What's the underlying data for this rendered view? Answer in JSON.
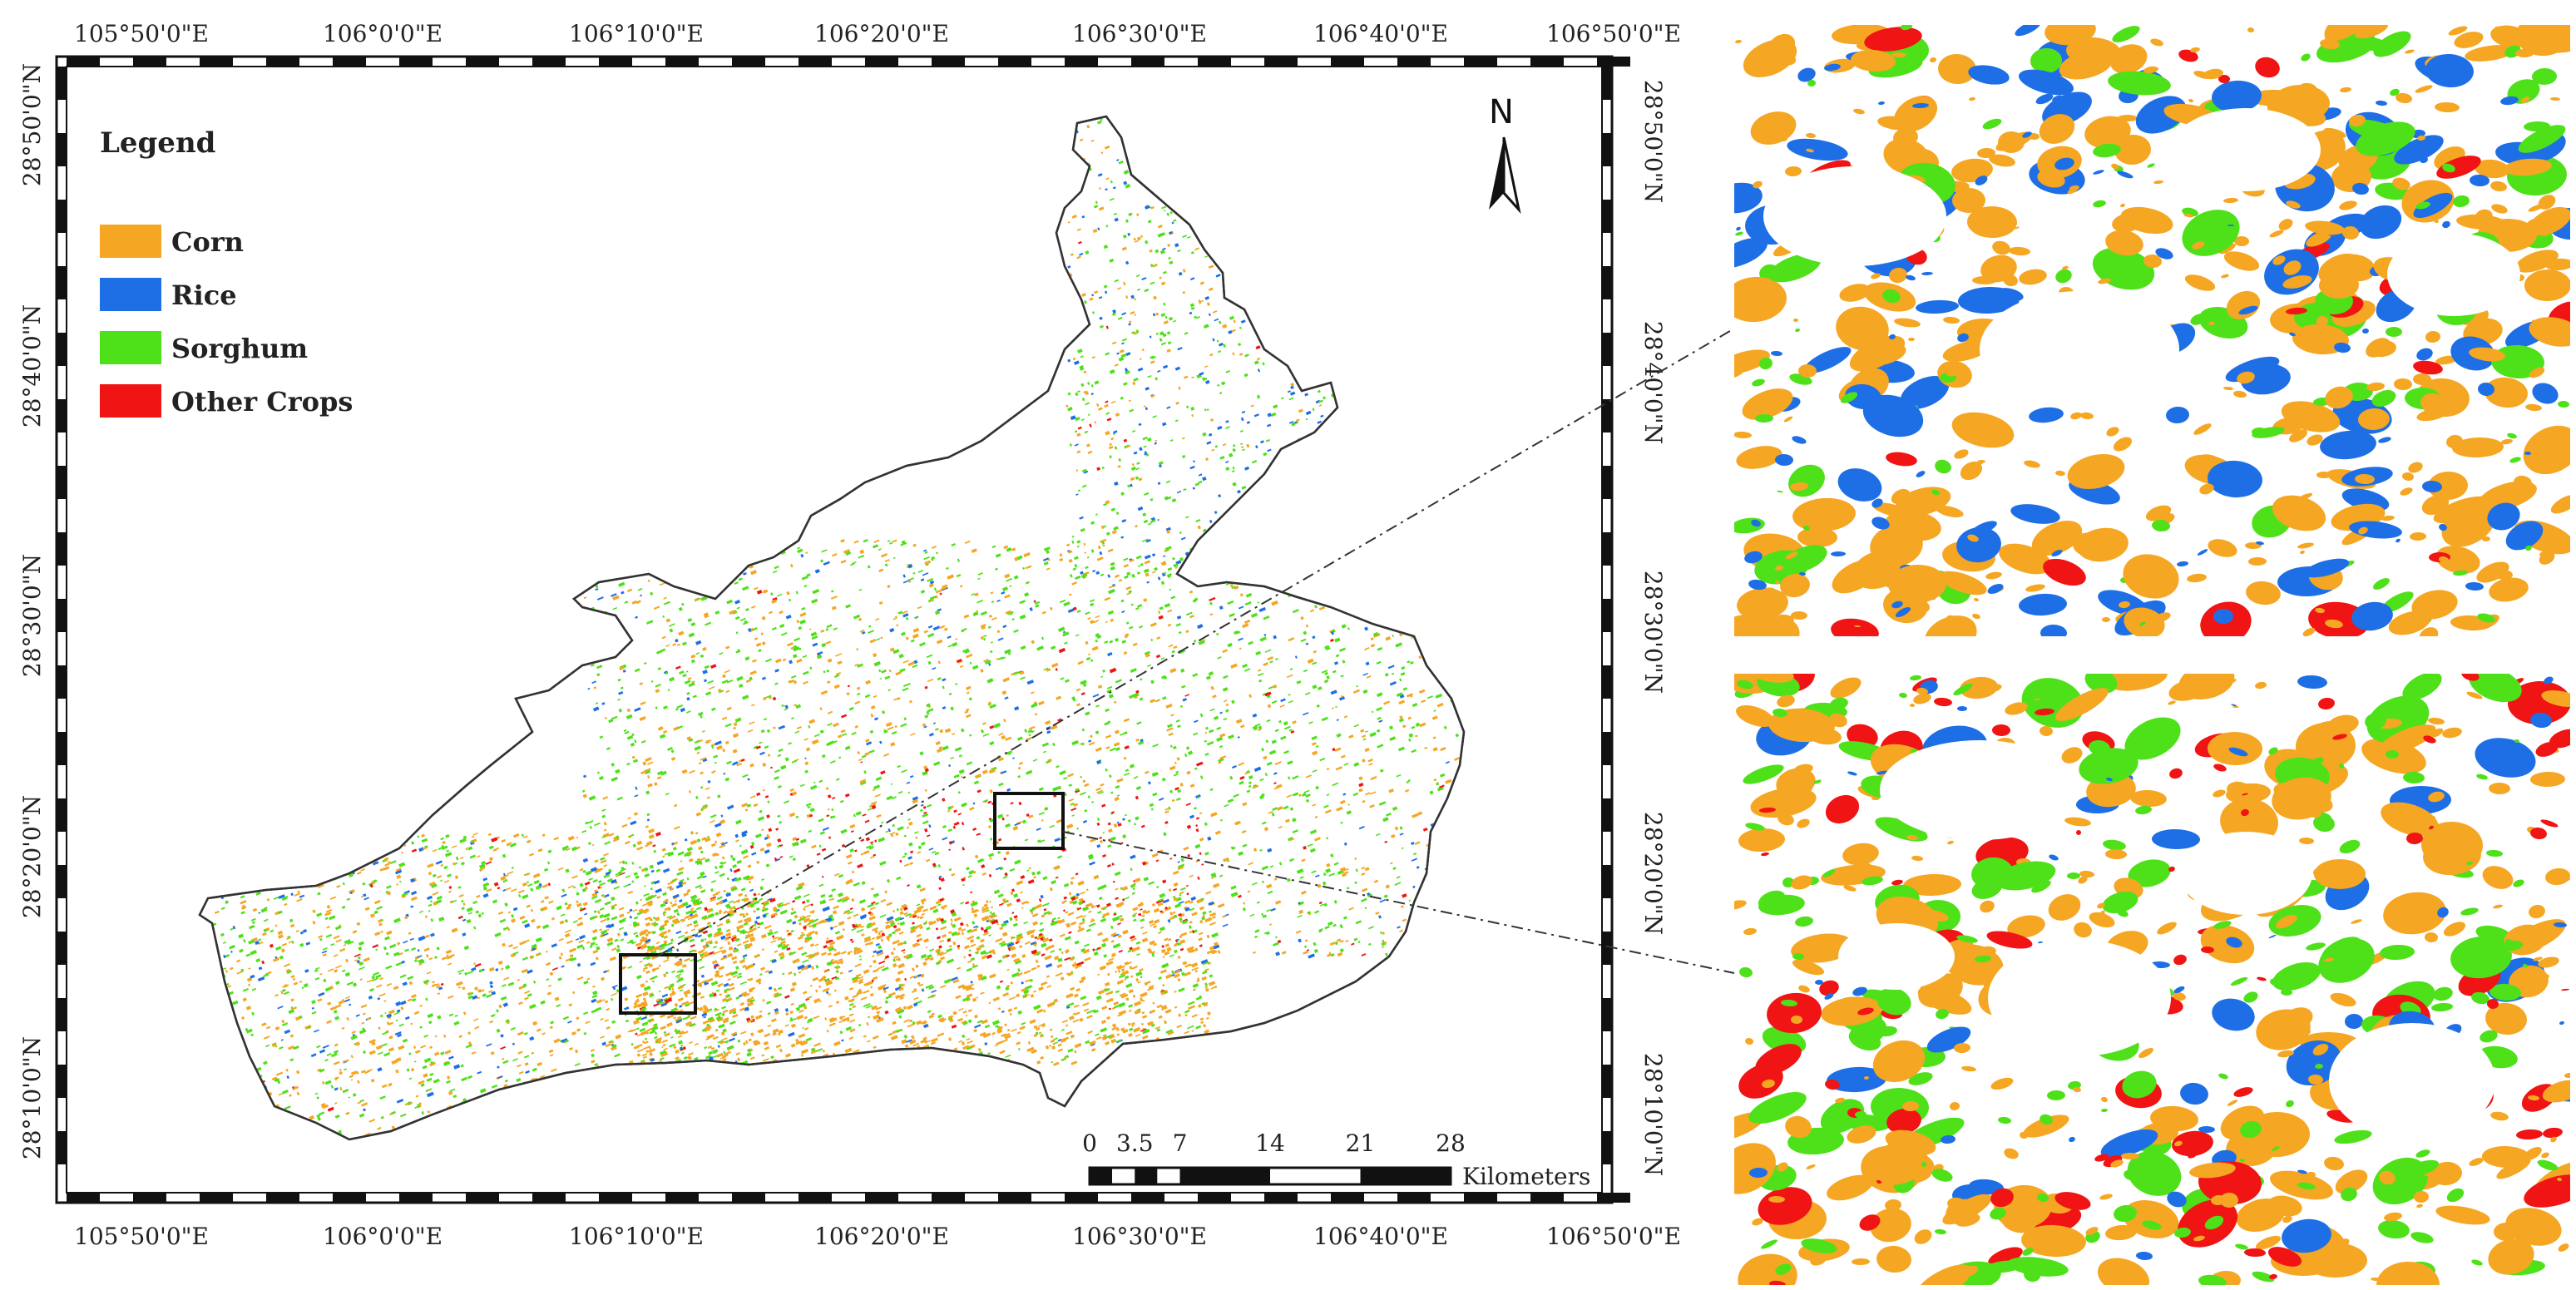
{
  "map": {
    "legend": {
      "title": "Legend",
      "items": [
        {
          "label": "Corn",
          "color": "#f5a623"
        },
        {
          "label": "Rice",
          "color": "#1e6fe6"
        },
        {
          "label": "Sorghum",
          "color": "#4ee11a"
        },
        {
          "label": "Other Crops",
          "color": "#f01414"
        }
      ]
    },
    "longitude_ticks": [
      "105°50'0\"E",
      "106°0'0\"E",
      "106°10'0\"E",
      "106°20'0\"E",
      "106°30'0\"E",
      "106°40'0\"E",
      "106°50'0\"E"
    ],
    "latitude_ticks": [
      "28°50'0\"N",
      "28°40'0\"N",
      "28°30'0\"N",
      "28°20'0\"N",
      "28°10'0\"N"
    ],
    "north_arrow": {
      "label": "N",
      "icon": "north-arrow-icon"
    },
    "scale_bar": {
      "values": [
        "0",
        "3.5",
        "7",
        "14",
        "21",
        "28"
      ],
      "unit": "Kilometers"
    },
    "region_outline_color": "#333333"
  }
}
